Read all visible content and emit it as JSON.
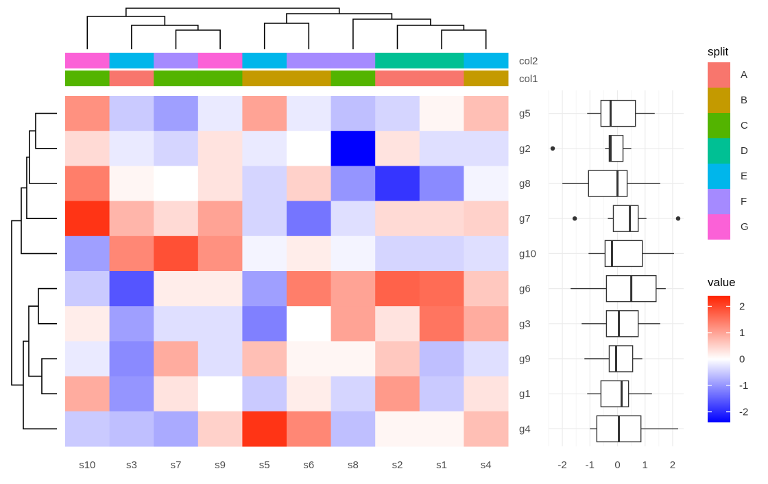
{
  "chart_data": [
    {
      "type": "heatmap",
      "columns": [
        "s10",
        "s3",
        "s7",
        "s9",
        "s5",
        "s6",
        "s8",
        "s2",
        "s1",
        "s4"
      ],
      "rows": [
        "g5",
        "g2",
        "g8",
        "g7",
        "g10",
        "g6",
        "g3",
        "g9",
        "g1",
        "g4"
      ],
      "values": [
        [
          1.2,
          -0.5,
          -0.9,
          -0.2,
          1.0,
          -0.2,
          -0.6,
          -0.4,
          0.1,
          0.7
        ],
        [
          0.4,
          -0.2,
          -0.4,
          0.3,
          -0.2,
          0.0,
          -2.4,
          0.3,
          -0.3,
          -0.3
        ],
        [
          1.4,
          0.1,
          0.0,
          0.3,
          -0.4,
          0.5,
          -1.0,
          -1.9,
          -1.1,
          -0.1
        ],
        [
          2.2,
          0.8,
          0.4,
          1.0,
          -0.4,
          -1.3,
          -0.3,
          0.4,
          0.4,
          0.5
        ],
        [
          -0.9,
          1.3,
          1.9,
          1.2,
          -0.1,
          0.2,
          -0.1,
          -0.4,
          -0.4,
          -0.3
        ],
        [
          -0.5,
          -1.6,
          0.2,
          0.2,
          -0.9,
          1.4,
          1.0,
          1.7,
          1.6,
          0.6
        ],
        [
          0.2,
          -0.9,
          -0.3,
          -0.3,
          -1.2,
          0.0,
          1.0,
          0.3,
          1.5,
          0.9
        ],
        [
          -0.2,
          -1.1,
          0.9,
          -0.3,
          0.7,
          0.1,
          0.1,
          0.6,
          -0.6,
          -0.3
        ],
        [
          0.9,
          -1.0,
          0.3,
          0.0,
          -0.5,
          0.2,
          -0.4,
          1.1,
          -0.5,
          0.3
        ],
        [
          -0.5,
          -0.6,
          -0.8,
          0.5,
          2.2,
          1.3,
          -0.6,
          0.1,
          0.1,
          0.7
        ]
      ],
      "col_annotations": {
        "col2": [
          "G",
          "E",
          "F",
          "G",
          "E",
          "F",
          "F",
          "D",
          "D",
          "E"
        ],
        "col1": [
          "C",
          "A",
          "C",
          "C",
          "B",
          "B",
          "C",
          "A",
          "A",
          "B"
        ]
      },
      "legend_split": {
        "title": "split",
        "entries": [
          "A",
          "B",
          "C",
          "D",
          "E",
          "F",
          "G"
        ],
        "colors": [
          "#F8766D",
          "#C49A00",
          "#53B400",
          "#00C094",
          "#00B6EB",
          "#A58AFF",
          "#FB61D7"
        ]
      },
      "legend_value": {
        "title": "value",
        "ticks": [
          "2",
          "1",
          "0",
          "-1",
          "-2"
        ],
        "range": [
          -2.4,
          2.4
        ],
        "colors": {
          "low": "#0000FF",
          "mid": "#FFFFFF",
          "high": "#FF2200"
        }
      }
    },
    {
      "type": "boxplot",
      "orientation": "horizontal",
      "categories": [
        "g5",
        "g2",
        "g8",
        "g7",
        "g10",
        "g6",
        "g3",
        "g9",
        "g1",
        "g4"
      ],
      "xlim": [
        -2.5,
        2.4
      ],
      "xticks": [
        "-2",
        "-1",
        "0",
        "1",
        "2"
      ],
      "boxes": [
        {
          "min": -1.1,
          "q1": -0.6,
          "median": -0.25,
          "q3": 0.65,
          "max": 1.35,
          "outliers": []
        },
        {
          "min": -0.45,
          "q1": -0.3,
          "median": -0.25,
          "q3": 0.2,
          "max": 0.5,
          "outliers": [
            -2.35
          ]
        },
        {
          "min": -2.0,
          "q1": -1.05,
          "median": 0.0,
          "q3": 0.35,
          "max": 1.55,
          "outliers": []
        },
        {
          "min": -0.35,
          "q1": -0.15,
          "median": 0.45,
          "q3": 0.75,
          "max": 1.05,
          "outliers": [
            -1.55,
            2.2
          ]
        },
        {
          "min": -1.05,
          "q1": -0.45,
          "median": -0.2,
          "q3": 0.9,
          "max": 2.05,
          "outliers": []
        },
        {
          "min": -1.7,
          "q1": -0.4,
          "median": 0.5,
          "q3": 1.4,
          "max": 1.75,
          "outliers": []
        },
        {
          "min": -1.3,
          "q1": -0.4,
          "median": 0.05,
          "q3": 0.75,
          "max": 1.55,
          "outliers": []
        },
        {
          "min": -1.2,
          "q1": -0.3,
          "median": -0.05,
          "q3": 0.55,
          "max": 0.9,
          "outliers": []
        },
        {
          "min": -1.1,
          "q1": -0.6,
          "median": 0.15,
          "q3": 0.4,
          "max": 1.25,
          "outliers": []
        },
        {
          "min": -1.0,
          "q1": -0.75,
          "median": 0.05,
          "q3": 0.85,
          "max": 2.2,
          "outliers": []
        }
      ]
    }
  ]
}
